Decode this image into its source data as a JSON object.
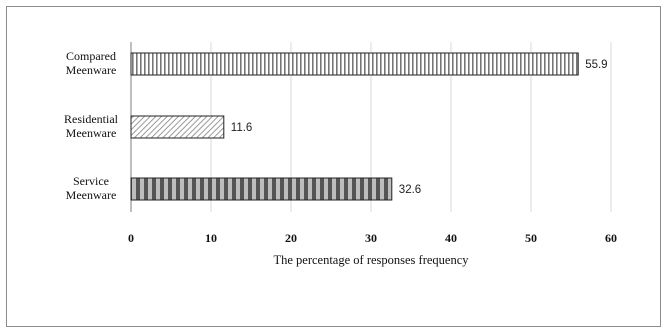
{
  "chart_data": {
    "type": "bar",
    "orientation": "horizontal",
    "categories": [
      [
        "Compared",
        "Meenware"
      ],
      [
        "Residential",
        "Meenware"
      ],
      [
        "Service",
        "Meenware"
      ]
    ],
    "values": [
      55.9,
      11.6,
      32.6
    ],
    "data_labels": [
      "55.9",
      "11.6",
      "32.6"
    ],
    "xlabel": "The percentage of responses frequency",
    "xlim": [
      0,
      60
    ],
    "xticks": [
      "0",
      "10",
      "20",
      "30",
      "40",
      "50",
      "60"
    ],
    "grid": "vertical gridlines",
    "legend": "none",
    "patterns": [
      "fine-vertical-stripes",
      "diagonal-hatch",
      "wide-dark-vertical-stripes"
    ]
  }
}
